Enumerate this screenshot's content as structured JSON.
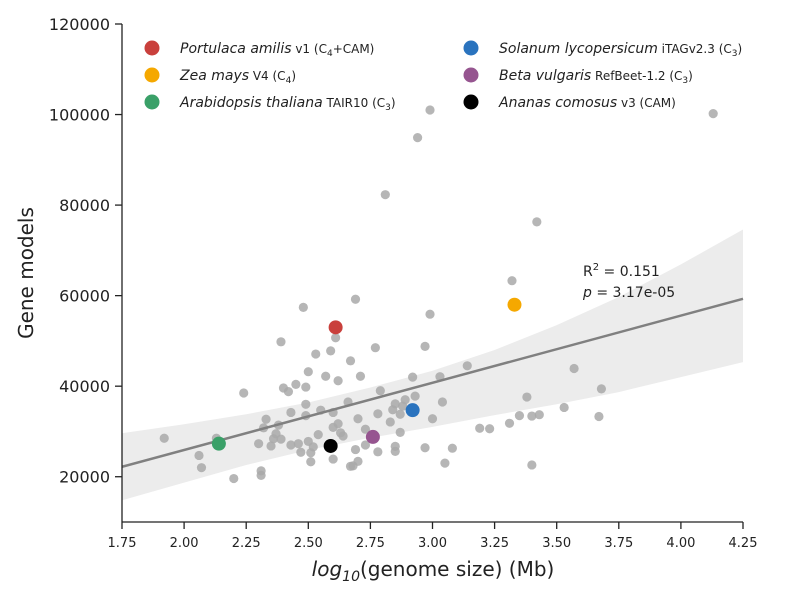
{
  "chart_data": {
    "type": "scatter",
    "xlabel_prefix": "log",
    "xlabel_sub": "10",
    "xlabel_suffix": "(genome size) (Mb)",
    "ylabel": "Gene models",
    "xlim": [
      1.75,
      4.25
    ],
    "ylim": [
      10000,
      120000
    ],
    "xticks": [
      "1.75",
      "2.00",
      "2.25",
      "2.50",
      "2.75",
      "3.00",
      "3.25",
      "3.50",
      "3.75",
      "4.00",
      "4.25"
    ],
    "yticks": [
      "20000",
      "40000",
      "60000",
      "80000",
      "100000",
      "120000"
    ],
    "grid": false,
    "legend_position": "top",
    "background_points": [
      [
        1.92,
        28500
      ],
      [
        2.06,
        24700
      ],
      [
        2.07,
        22000
      ],
      [
        2.13,
        28500
      ],
      [
        2.2,
        19600
      ],
      [
        2.24,
        38500
      ],
      [
        2.3,
        27300
      ],
      [
        2.31,
        21300
      ],
      [
        2.31,
        20300
      ],
      [
        2.32,
        30800
      ],
      [
        2.33,
        32700
      ],
      [
        2.35,
        26800
      ],
      [
        2.36,
        28400
      ],
      [
        2.37,
        29500
      ],
      [
        2.38,
        31400
      ],
      [
        2.39,
        28300
      ],
      [
        2.39,
        49800
      ],
      [
        2.4,
        39600
      ],
      [
        2.42,
        38800
      ],
      [
        2.43,
        34200
      ],
      [
        2.43,
        27000
      ],
      [
        2.45,
        40400
      ],
      [
        2.46,
        27300
      ],
      [
        2.47,
        25400
      ],
      [
        2.48,
        57400
      ],
      [
        2.49,
        39800
      ],
      [
        2.49,
        36000
      ],
      [
        2.49,
        33500
      ],
      [
        2.5,
        27800
      ],
      [
        2.5,
        43200
      ],
      [
        2.51,
        25300
      ],
      [
        2.51,
        23300
      ],
      [
        2.52,
        26600
      ],
      [
        2.53,
        47100
      ],
      [
        2.54,
        29300
      ],
      [
        2.55,
        34700
      ],
      [
        2.57,
        42200
      ],
      [
        2.59,
        47800
      ],
      [
        2.6,
        30900
      ],
      [
        2.6,
        34200
      ],
      [
        2.6,
        23900
      ],
      [
        2.61,
        50700
      ],
      [
        2.62,
        41200
      ],
      [
        2.62,
        31700
      ],
      [
        2.63,
        29700
      ],
      [
        2.64,
        29000
      ],
      [
        2.66,
        36500
      ],
      [
        2.67,
        22300
      ],
      [
        2.67,
        45600
      ],
      [
        2.68,
        22400
      ],
      [
        2.69,
        26000
      ],
      [
        2.69,
        59200
      ],
      [
        2.7,
        23400
      ],
      [
        2.7,
        32800
      ],
      [
        2.71,
        42200
      ],
      [
        2.73,
        27000
      ],
      [
        2.73,
        30500
      ],
      [
        2.77,
        48500
      ],
      [
        2.78,
        33900
      ],
      [
        2.78,
        25500
      ],
      [
        2.79,
        39000
      ],
      [
        2.81,
        82300
      ],
      [
        2.83,
        32100
      ],
      [
        2.84,
        34800
      ],
      [
        2.85,
        26700
      ],
      [
        2.85,
        25600
      ],
      [
        2.85,
        36100
      ],
      [
        2.87,
        33800
      ],
      [
        2.87,
        29800
      ],
      [
        2.88,
        35600
      ],
      [
        2.89,
        37000
      ],
      [
        2.92,
        42000
      ],
      [
        2.93,
        37800
      ],
      [
        2.94,
        94900
      ],
      [
        2.97,
        48800
      ],
      [
        2.97,
        26400
      ],
      [
        2.99,
        55900
      ],
      [
        2.99,
        101000
      ],
      [
        3.0,
        32800
      ],
      [
        3.03,
        42100
      ],
      [
        3.04,
        36500
      ],
      [
        3.05,
        23000
      ],
      [
        3.08,
        26300
      ],
      [
        3.14,
        44500
      ],
      [
        3.19,
        30700
      ],
      [
        3.23,
        30600
      ],
      [
        3.31,
        31800
      ],
      [
        3.32,
        63300
      ],
      [
        3.35,
        33500
      ],
      [
        3.38,
        37600
      ],
      [
        3.4,
        22600
      ],
      [
        3.4,
        33400
      ],
      [
        3.42,
        76300
      ],
      [
        3.43,
        33700
      ],
      [
        3.53,
        35300
      ],
      [
        3.57,
        43900
      ],
      [
        3.67,
        33300
      ],
      [
        3.68,
        39400
      ],
      [
        4.13,
        100200
      ]
    ],
    "regression": {
      "x": [
        1.75,
        4.25
      ],
      "y": [
        22200,
        59300
      ]
    },
    "confidence_band": {
      "x": [
        1.75,
        2.0,
        2.25,
        2.5,
        2.75,
        3.0,
        3.25,
        3.5,
        3.75,
        4.0,
        4.25
      ],
      "upper": [
        29600,
        31600,
        33800,
        36400,
        39700,
        43400,
        48000,
        53500,
        59700,
        66900,
        74600
      ],
      "lower": [
        14800,
        18700,
        22600,
        25900,
        28600,
        31000,
        33600,
        36000,
        38700,
        42000,
        45300
      ]
    },
    "highlighted": [
      {
        "name_italic": "Portulaca amilis",
        "version": " v1 (C",
        "sub": "4",
        "tail": "+CAM)",
        "color": "#c9403c",
        "x": 2.61,
        "y": 53000
      },
      {
        "name_italic": "Zea mays",
        "version": " V4 (C",
        "sub": "4",
        "tail": ")",
        "color": "#f5a800",
        "x": 3.33,
        "y": 58000
      },
      {
        "name_italic": "Arabidopsis thaliana",
        "version": " TAIR10 (C",
        "sub": "3",
        "tail": ")",
        "color": "#3aa068",
        "x": 2.14,
        "y": 27300
      },
      {
        "name_italic": "Solanum lycopersicum",
        "version": " iTAGv2.3 (C",
        "sub": "3",
        "tail": ")",
        "color": "#2a73be",
        "x": 2.92,
        "y": 34700
      },
      {
        "name_italic": "Beta vulgaris",
        "version": " RefBeet-1.2 (C",
        "sub": "3",
        "tail": ")",
        "color": "#965590",
        "x": 2.76,
        "y": 28800
      },
      {
        "name_italic": "Ananas comosus",
        "version": " v3 (CAM)",
        "sub": "",
        "tail": "",
        "color": "#000000",
        "x": 2.59,
        "y": 26800
      }
    ],
    "annotation": {
      "r2_label": "R",
      "r2_sup": "2",
      "r2_value": " = 0.151",
      "p_label": "p",
      "p_value": " = 3.17e-05"
    },
    "colors": {
      "background_point": "#a9a9a9",
      "regression": "#808080",
      "band": "#ececec",
      "axis": "#222222"
    }
  }
}
